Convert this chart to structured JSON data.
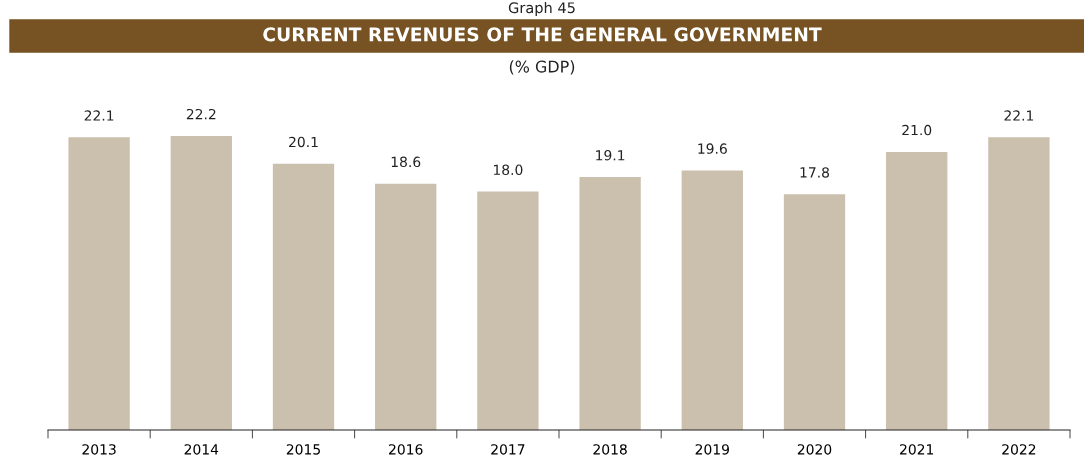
{
  "chart_data": {
    "type": "bar",
    "title": "CURRENT REVENUES OF THE GENERAL GOVERNMENT",
    "subtitle": "(% GDP)",
    "annotations": [
      "Graph 45"
    ],
    "categories": [
      "2013",
      "2014",
      "2015",
      "2016",
      "2017",
      "2018",
      "2019",
      "2020",
      "2021",
      "2022"
    ],
    "values": [
      22.1,
      22.2,
      20.1,
      18.6,
      18.0,
      19.1,
      19.6,
      17.8,
      21.0,
      22.1
    ],
    "value_labels": [
      "22.1",
      "22.2",
      "20.1",
      "18.6",
      "18.0",
      "19.1",
      "19.6",
      "17.8",
      "21.0",
      "22.1"
    ],
    "color": "#cbbfad",
    "grid": false,
    "legend": false,
    "tick_labels": "x"
  }
}
